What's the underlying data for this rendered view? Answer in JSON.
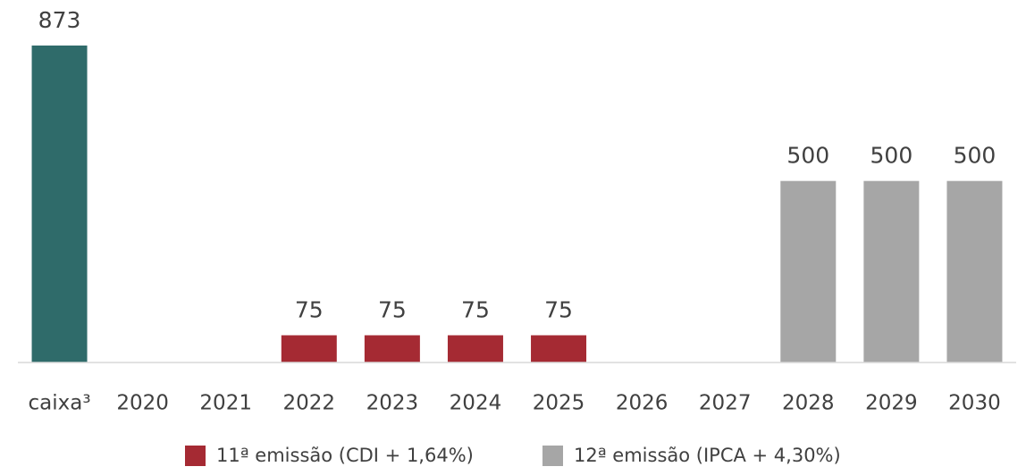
{
  "chart_data": {
    "type": "bar",
    "categories": [
      "caixa³",
      "2020",
      "2021",
      "2022",
      "2023",
      "2024",
      "2025",
      "2026",
      "2027",
      "2028",
      "2029",
      "2030"
    ],
    "series": [
      {
        "color": "#2f6b6a",
        "values": [
          873,
          null,
          null,
          null,
          null,
          null,
          null,
          null,
          null,
          null,
          null,
          null
        ]
      },
      {
        "name": "11ª emissão (CDI + 1,64%)",
        "color": "#a52a33",
        "values": [
          null,
          null,
          null,
          75,
          75,
          75,
          75,
          null,
          null,
          null,
          null,
          null
        ]
      },
      {
        "name": "12ª emissão (IPCA + 4,30%)",
        "color": "#a6a6a6",
        "values": [
          null,
          null,
          null,
          null,
          null,
          null,
          null,
          null,
          null,
          500,
          500,
          500
        ]
      }
    ],
    "legend": "bottom"
  }
}
